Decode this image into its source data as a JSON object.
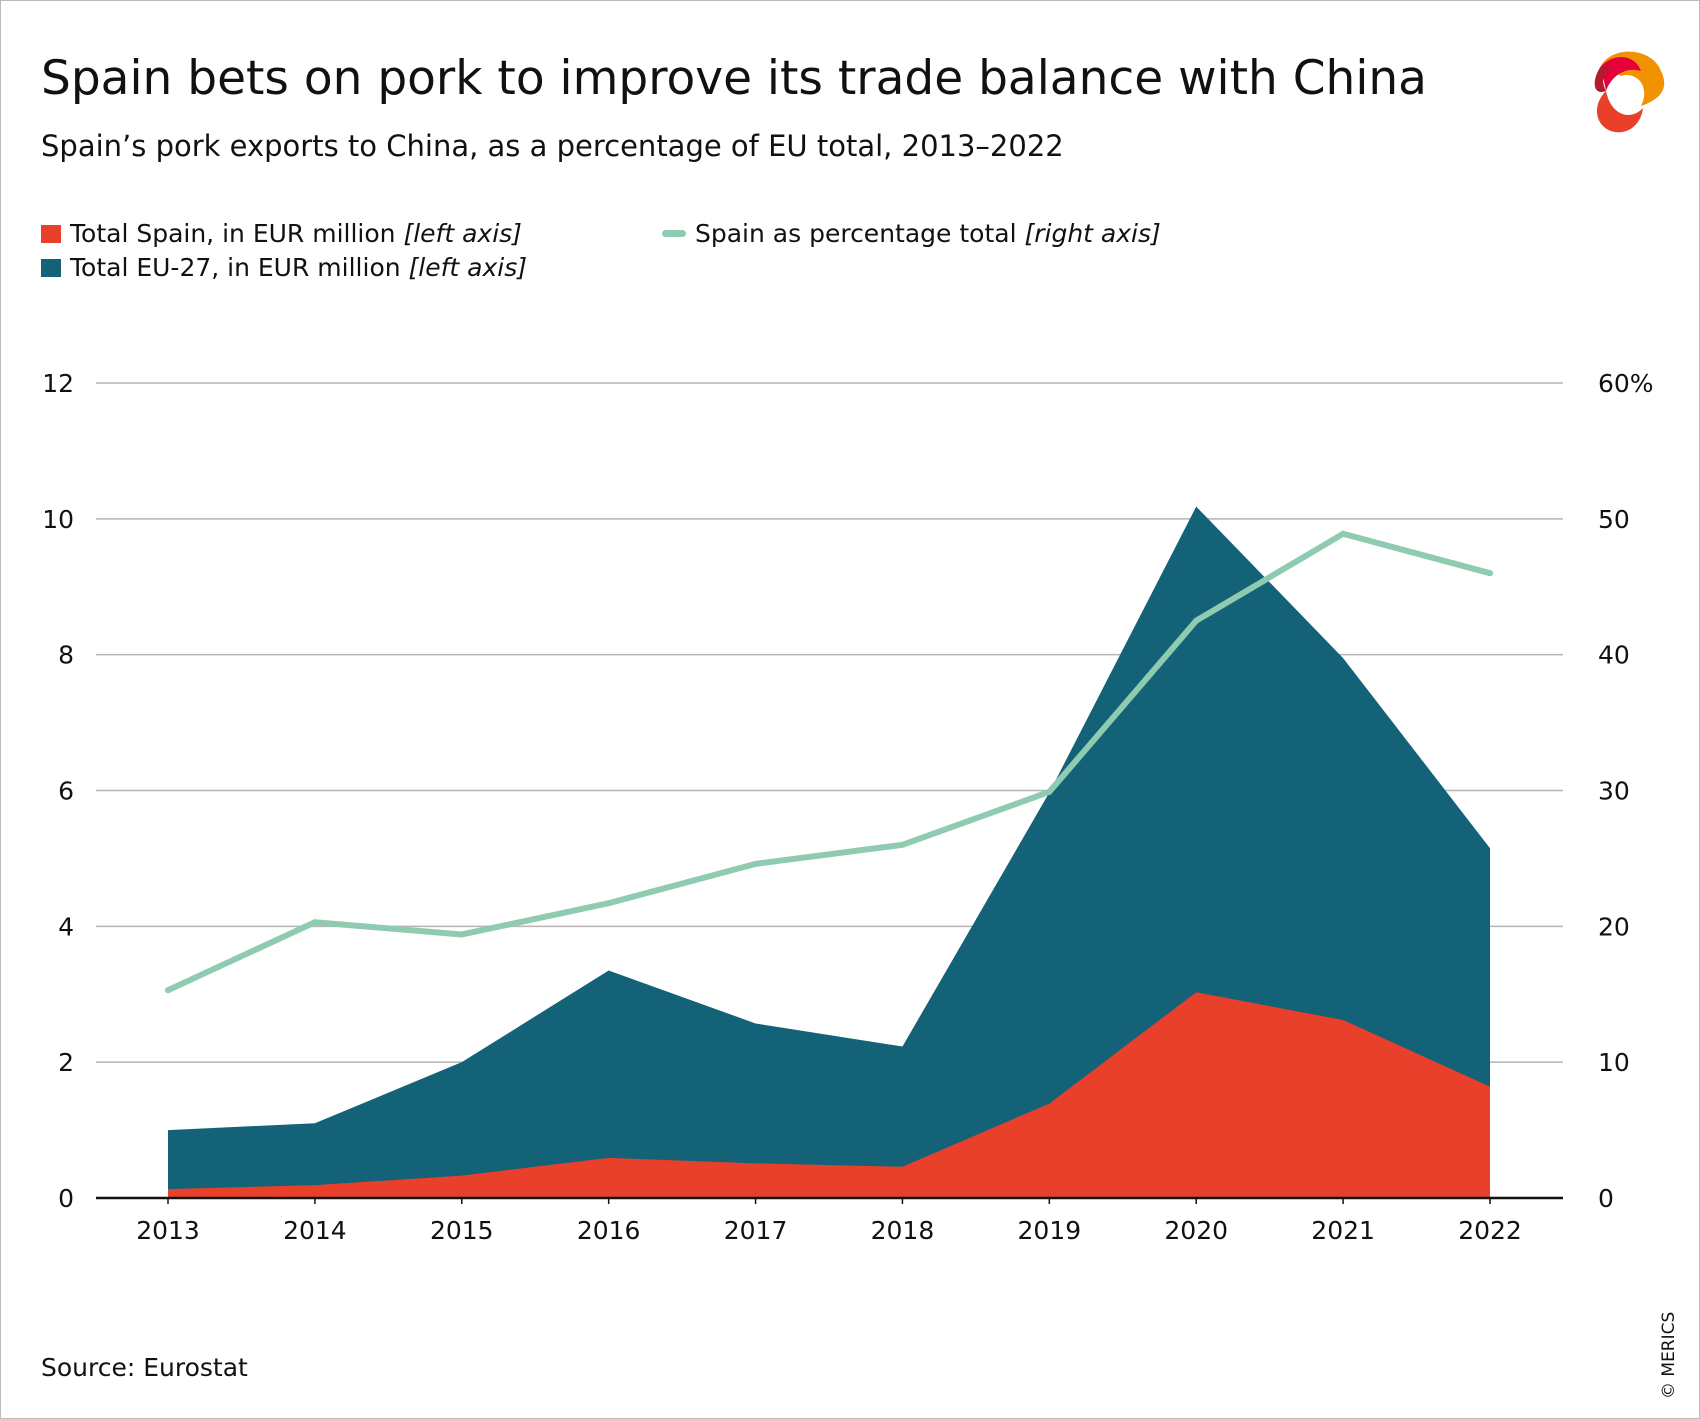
{
  "title": "Spain bets on pork to improve its trade balance with China",
  "subtitle": "Spain’s pork exports to China, as a percentage of EU total, 2013–2022",
  "source": "Source: Eurostat",
  "credit": "© MERICS",
  "legend": [
    {
      "label": "Total Spain, in EUR million ",
      "axis": "[left axis]",
      "color": "#e8402a"
    },
    {
      "label": "Total EU-27, in EUR million ",
      "axis": "[left axis]",
      "color": "#136278"
    },
    {
      "label": "Spain as percentage total ",
      "axis": "[right axis]",
      "color": "#8fcbb0"
    }
  ],
  "chart_data": {
    "type": "area",
    "title": "Spain bets on pork to improve its trade balance with China",
    "subtitle": "Spain’s pork exports to China, as a percentage of EU total, 2013–2022",
    "categories": [
      "2013",
      "2014",
      "2015",
      "2016",
      "2017",
      "2018",
      "2019",
      "2020",
      "2021",
      "2022"
    ],
    "series": [
      {
        "name": "Total EU-27, in EUR million",
        "type": "area",
        "axis": "left",
        "color": "#136278",
        "values": [
          1.0,
          1.1,
          2.0,
          3.35,
          2.57,
          2.23,
          5.97,
          10.18,
          7.95,
          5.15
        ]
      },
      {
        "name": "Total Spain, in EUR million",
        "type": "area",
        "axis": "left",
        "color": "#e8402a",
        "values": [
          0.13,
          0.19,
          0.33,
          0.59,
          0.51,
          0.46,
          1.39,
          3.03,
          2.62,
          1.64
        ]
      },
      {
        "name": "Spain as percentage total",
        "type": "line",
        "axis": "right",
        "color": "#8fcbb0",
        "values": [
          15.3,
          20.3,
          19.4,
          21.7,
          24.6,
          26.0,
          29.9,
          42.5,
          48.9,
          46.0
        ]
      }
    ],
    "y_left": {
      "range": [
        0,
        12
      ],
      "ticks": [
        "0",
        "2",
        "4",
        "6",
        "8",
        "10",
        "12"
      ]
    },
    "y_right": {
      "range": [
        0,
        60
      ],
      "ticks": [
        "0",
        "10",
        "20",
        "30",
        "40",
        "50",
        "60%"
      ]
    },
    "grid": true,
    "legend_position": "top-left"
  }
}
